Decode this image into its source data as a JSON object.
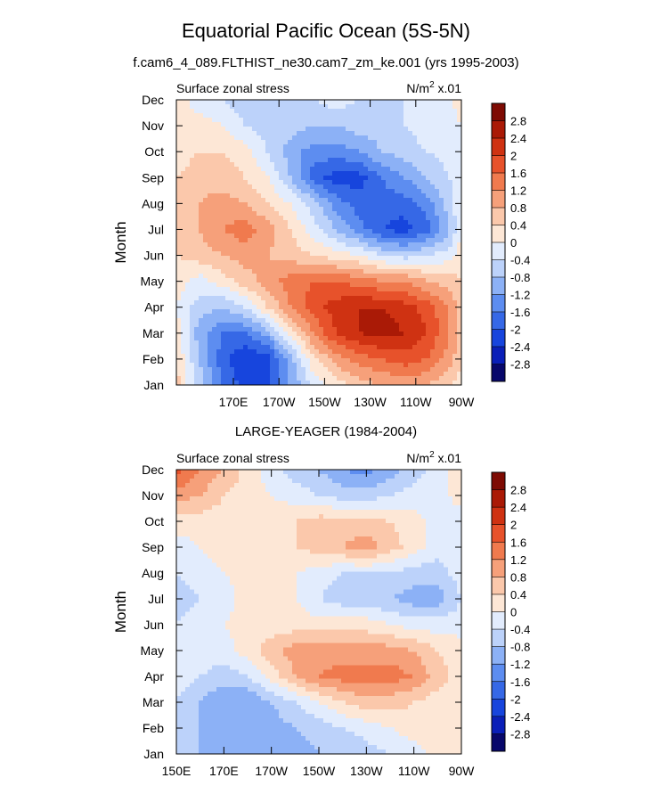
{
  "figure": {
    "title": "Equatorial Pacific Ocean (5S-5N)",
    "subtitle": "f.cam6_4_089.FLTHIST_ne30.cam7_zm_ke.001 (yrs 1995-2003)",
    "bottom_title": "LARGE-YEAGER (1984-2004)"
  },
  "colors": {
    "levels_palette": [
      "#08086b",
      "#0a1fb8",
      "#1745dd",
      "#3668e6",
      "#5d8df0",
      "#8cb1f6",
      "#bcd2fa",
      "#e2ecfd",
      "#fde7d6",
      "#fbc8ab",
      "#f6a07a",
      "#f07a4e",
      "#e7522b",
      "#cf3212",
      "#aa1a06",
      "#7e0b03"
    ]
  },
  "chart_data": [
    {
      "type": "heatmap",
      "panel": "model",
      "left_label": "Surface zonal stress",
      "right_label": "N/m",
      "right_label_sup": "2",
      "right_label_suffix": " x.01",
      "ylabel": "Month",
      "y_categories": [
        "Jan",
        "Feb",
        "Mar",
        "Apr",
        "May",
        "Jun",
        "Jul",
        "Aug",
        "Sep",
        "Oct",
        "Nov",
        "Dec"
      ],
      "x_tick_labels": [
        "170E",
        "170W",
        "150W",
        "130W",
        "110W",
        "90W"
      ],
      "x_tick_values": [
        170,
        190,
        210,
        230,
        250,
        270
      ],
      "xlim": [
        145,
        270
      ],
      "colorbar_labels": [
        "-2.8",
        "-2.4",
        "-2",
        "-1.6",
        "-1.2",
        "-0.8",
        "-0.4",
        "0",
        "0.4",
        "0.8",
        "1.2",
        "1.6",
        "2",
        "2.4",
        "2.8"
      ],
      "longitude_columns": [
        145,
        155,
        165,
        175,
        185,
        195,
        205,
        215,
        225,
        235,
        245,
        255,
        265,
        270
      ],
      "values": [
        [
          0.6,
          -0.6,
          -1.6,
          -2.2,
          -2.0,
          -1.2,
          -0.3,
          0.2,
          0.6,
          0.8,
          1.0,
          0.8,
          0.4,
          0.2
        ],
        [
          0.4,
          -0.8,
          -1.8,
          -2.4,
          -2.2,
          -1.0,
          0.3,
          1.0,
          1.4,
          1.6,
          1.8,
          1.6,
          1.0,
          0.4
        ],
        [
          0.2,
          -1.0,
          -1.6,
          -1.6,
          -1.0,
          0.2,
          1.2,
          2.0,
          2.4,
          2.6,
          2.4,
          2.0,
          1.2,
          0.6
        ],
        [
          0.0,
          -0.6,
          -0.8,
          -0.4,
          0.4,
          1.2,
          1.8,
          2.2,
          2.4,
          2.4,
          2.2,
          1.8,
          1.2,
          0.6
        ],
        [
          0.2,
          -0.2,
          0.2,
          0.6,
          1.0,
          1.4,
          1.6,
          1.6,
          1.4,
          1.2,
          1.2,
          0.8,
          0.6,
          0.4
        ],
        [
          0.4,
          0.6,
          0.8,
          1.0,
          0.8,
          0.6,
          0.4,
          0.2,
          0.0,
          -0.4,
          -0.6,
          -0.4,
          -0.2,
          0.2
        ],
        [
          0.6,
          0.8,
          1.2,
          1.4,
          1.0,
          0.4,
          -0.2,
          -0.8,
          -1.4,
          -2.0,
          -2.2,
          -1.8,
          -0.8,
          0.0
        ],
        [
          0.6,
          0.8,
          1.0,
          0.8,
          0.4,
          0.0,
          -0.6,
          -1.4,
          -1.8,
          -1.8,
          -1.8,
          -1.4,
          -0.6,
          0.0
        ],
        [
          0.4,
          0.6,
          0.6,
          0.4,
          0.0,
          -0.8,
          -1.8,
          -2.2,
          -2.2,
          -1.6,
          -1.2,
          -0.8,
          -0.4,
          0.0
        ],
        [
          0.2,
          0.4,
          0.4,
          0.2,
          -0.4,
          -1.0,
          -1.4,
          -1.4,
          -1.2,
          -0.8,
          -0.6,
          -0.4,
          -0.2,
          0.0
        ],
        [
          0.2,
          0.2,
          0.0,
          -0.4,
          -0.6,
          -0.6,
          -0.8,
          -0.8,
          -0.6,
          -0.6,
          -0.4,
          -0.2,
          -0.2,
          0.0
        ],
        [
          0.2,
          -0.2,
          -0.4,
          -0.6,
          -0.6,
          -0.6,
          -0.4,
          -0.2,
          -0.4,
          -0.4,
          -0.4,
          -0.2,
          0.0,
          0.2
        ]
      ]
    },
    {
      "type": "heatmap",
      "panel": "observation",
      "left_label": "Surface zonal stress",
      "right_label": "N/m",
      "right_label_sup": "2",
      "right_label_suffix": " x.01",
      "ylabel": "Month",
      "y_categories": [
        "Jan",
        "Feb",
        "Mar",
        "Apr",
        "May",
        "Jun",
        "Jul",
        "Aug",
        "Sep",
        "Oct",
        "Nov",
        "Dec"
      ],
      "x_tick_labels": [
        "150E",
        "170E",
        "170W",
        "150W",
        "130W",
        "110W",
        "90W"
      ],
      "x_tick_values": [
        150,
        170,
        190,
        210,
        230,
        250,
        270
      ],
      "xlim": [
        150,
        270
      ],
      "colorbar_labels": [
        "-2.8",
        "-2.4",
        "-2",
        "-1.6",
        "-1.2",
        "-0.8",
        "-0.4",
        "0",
        "0.4",
        "0.8",
        "1.2",
        "1.6",
        "2",
        "2.4",
        "2.8"
      ],
      "longitude_columns": [
        150,
        160,
        170,
        180,
        190,
        200,
        210,
        220,
        230,
        240,
        250,
        260,
        270
      ],
      "values": [
        [
          -0.6,
          -0.8,
          -1.0,
          -1.0,
          -1.0,
          -1.0,
          -0.8,
          -0.8,
          -0.6,
          -0.4,
          -0.2,
          0.2,
          0.0
        ],
        [
          -0.6,
          -0.8,
          -1.0,
          -1.0,
          -1.0,
          -0.8,
          -0.6,
          -0.4,
          -0.2,
          0.0,
          0.2,
          0.2,
          0.0
        ],
        [
          -0.4,
          -0.8,
          -1.2,
          -1.2,
          -0.8,
          -0.4,
          0.0,
          0.4,
          0.6,
          0.6,
          0.4,
          0.2,
          0.0
        ],
        [
          -0.2,
          -0.4,
          -0.6,
          -0.4,
          0.2,
          0.8,
          1.2,
          1.4,
          1.4,
          1.4,
          1.2,
          0.6,
          0.2
        ],
        [
          -0.2,
          -0.2,
          -0.2,
          0.2,
          0.6,
          1.0,
          1.0,
          1.0,
          1.0,
          1.0,
          0.8,
          0.4,
          0.2
        ],
        [
          -0.4,
          -0.2,
          0.0,
          0.2,
          0.2,
          0.2,
          0.2,
          0.2,
          0.2,
          0.0,
          -0.2,
          -0.2,
          -0.2
        ],
        [
          -0.6,
          -0.4,
          -0.2,
          0.2,
          0.2,
          0.0,
          -0.4,
          -0.6,
          -0.6,
          -0.8,
          -1.0,
          -1.0,
          -0.4
        ],
        [
          -0.4,
          -0.2,
          0.0,
          0.2,
          0.2,
          0.0,
          -0.2,
          -0.4,
          -0.4,
          -0.4,
          -0.6,
          -0.6,
          -0.2
        ],
        [
          -0.2,
          0.0,
          0.2,
          0.2,
          0.2,
          0.4,
          0.6,
          0.8,
          1.0,
          0.6,
          0.2,
          -0.2,
          -0.2
        ],
        [
          0.2,
          0.2,
          0.2,
          0.2,
          0.2,
          0.4,
          0.6,
          0.6,
          0.6,
          0.4,
          0.2,
          -0.2,
          -0.2
        ],
        [
          1.0,
          0.8,
          0.4,
          0.2,
          0.0,
          -0.2,
          -0.4,
          -0.6,
          -0.6,
          -0.4,
          -0.2,
          -0.2,
          0.2
        ],
        [
          1.8,
          1.2,
          0.8,
          0.2,
          -0.2,
          -0.6,
          -0.8,
          -1.2,
          -1.4,
          -1.0,
          -0.6,
          -0.2,
          0.2
        ]
      ]
    }
  ]
}
